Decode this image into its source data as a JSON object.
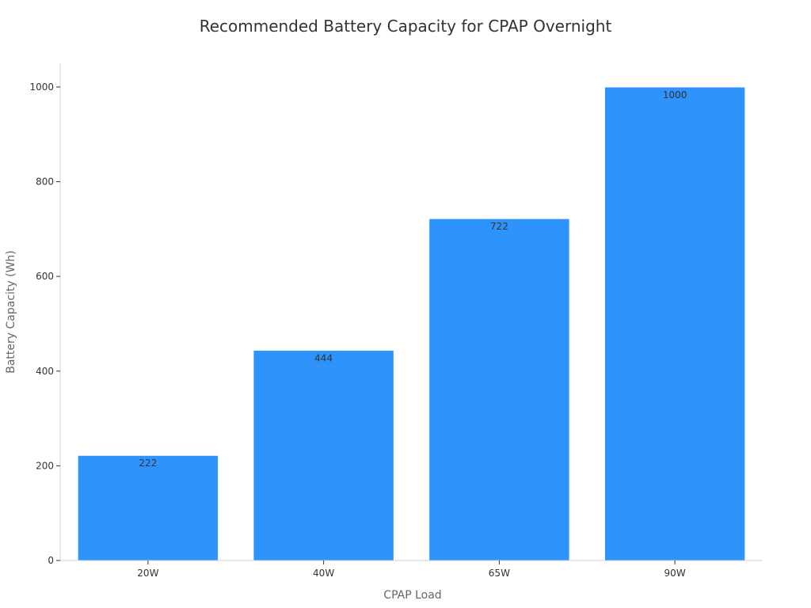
{
  "chart_data": {
    "type": "bar",
    "title": "Recommended Battery Capacity for CPAP Overnight",
    "xlabel": "CPAP Load",
    "ylabel": "Battery Capacity (Wh)",
    "categories": [
      "20W",
      "40W",
      "65W",
      "90W"
    ],
    "values": [
      222,
      444,
      722,
      1000
    ],
    "data_labels": [
      "222",
      "444",
      "722",
      "1000"
    ],
    "ylim": [
      0,
      1050
    ],
    "yticks": [
      0,
      200,
      400,
      600,
      800,
      1000
    ],
    "bar_color": "#2e93fa",
    "bar_edge_color": "#ffffff",
    "grid": false,
    "legend": "none"
  }
}
